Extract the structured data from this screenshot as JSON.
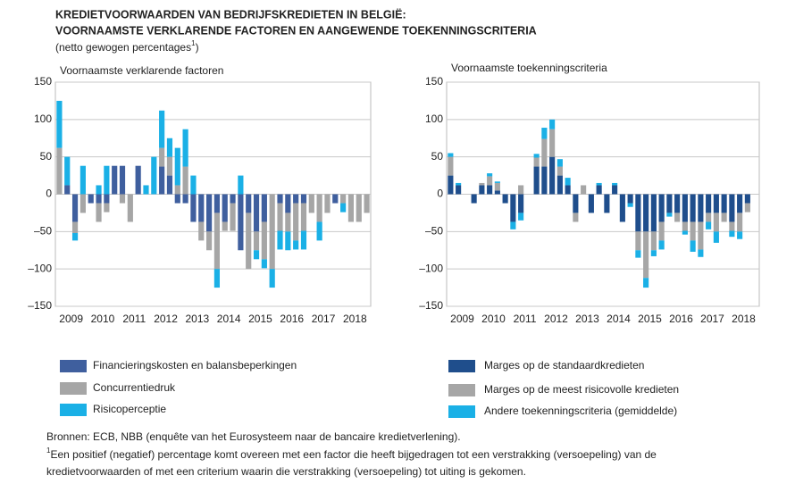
{
  "header": {
    "title_line1": "KREDIETVOORWAARDEN VAN BEDRIJFSKREDIETEN IN BELGIË:",
    "title_line2": "VOORNAAMSTE VERKLARENDE FACTOREN EN AANGEWENDE TOEKENNINGSCRITERIA",
    "subtitle": "(netto gewogen percentages",
    "subtitle_note": "1",
    "subtitle_end": ")"
  },
  "chart_data": [
    {
      "type": "stacked_bar",
      "title": "Voornaamste verklarende factoren",
      "categories": [
        "2009",
        null,
        null,
        null,
        "2010",
        null,
        null,
        null,
        "2011",
        null,
        null,
        null,
        "2012",
        null,
        null,
        null,
        "2013",
        null,
        null,
        null,
        "2014",
        null,
        null,
        null,
        "2015",
        null,
        null,
        null,
        "2016",
        null,
        null,
        null,
        "2017",
        null,
        null,
        null,
        "2018",
        null,
        null,
        null
      ],
      "ylim": [
        -150,
        150
      ],
      "yticks": [
        {
          "value": -150,
          "label": "–150"
        },
        {
          "value": -100,
          "label": "–100"
        },
        {
          "value": -50,
          "label": "–50"
        },
        0,
        50,
        100,
        150
      ],
      "grid": true,
      "series": [
        {
          "name": "Financieringskosten en balansbeperkingen",
          "color": "#3f5f9e",
          "values": [
            0,
            12,
            -37,
            0,
            -12,
            -12,
            -12,
            38,
            38,
            0,
            38,
            0,
            0,
            37,
            25,
            -12,
            -12,
            -37,
            -37,
            -50,
            -25,
            -37,
            -12,
            -75,
            -25,
            -50,
            -37,
            0,
            -12,
            -25,
            -12,
            -12,
            0,
            0,
            0,
            -12,
            0,
            0,
            0,
            0
          ]
        },
        {
          "name": "Concurrentiedruk",
          "color": "#a6a6a6",
          "values": [
            62,
            0,
            -15,
            -25,
            0,
            -25,
            -12,
            0,
            -12,
            -37,
            0,
            0,
            0,
            25,
            25,
            12,
            37,
            0,
            -25,
            -25,
            -75,
            -12,
            -37,
            0,
            -75,
            -25,
            -50,
            -100,
            -37,
            -25,
            -50,
            -37,
            -25,
            -37,
            -25,
            0,
            -12,
            -37,
            -37,
            -25
          ]
        },
        {
          "name": "Risicoperceptie",
          "color": "#1ab0e6",
          "values": [
            63,
            38,
            -10,
            38,
            0,
            12,
            38,
            0,
            0,
            0,
            0,
            12,
            50,
            50,
            25,
            50,
            50,
            25,
            0,
            0,
            -25,
            0,
            0,
            25,
            0,
            -12,
            -12,
            -25,
            -25,
            -25,
            -12,
            -25,
            0,
            -25,
            0,
            0,
            -12,
            0,
            0,
            0
          ]
        }
      ]
    },
    {
      "type": "stacked_bar",
      "title": "Voornaamste toekenningscriteria",
      "categories": [
        "2009",
        null,
        null,
        null,
        "2010",
        null,
        null,
        null,
        "2011",
        null,
        null,
        null,
        "2012",
        null,
        null,
        null,
        "2013",
        null,
        null,
        null,
        "2014",
        null,
        null,
        null,
        "2015",
        null,
        null,
        null,
        "2016",
        null,
        null,
        null,
        "2017",
        null,
        null,
        null,
        "2018",
        null,
        null,
        null
      ],
      "ylim": [
        -150,
        150
      ],
      "yticks": [
        {
          "value": -150,
          "label": "–150"
        },
        {
          "value": -100,
          "label": "–100"
        },
        {
          "value": -50,
          "label": "–50"
        },
        0,
        50,
        100,
        150
      ],
      "grid": true,
      "series": [
        {
          "name": "Marges op de standaardkredieten",
          "color": "#1f4e8c",
          "values": [
            25,
            12,
            0,
            -12,
            12,
            12,
            5,
            -12,
            -37,
            -25,
            0,
            37,
            37,
            50,
            25,
            12,
            -25,
            0,
            -25,
            12,
            -25,
            12,
            -37,
            -12,
            -50,
            -50,
            -50,
            -37,
            -25,
            -25,
            -37,
            -37,
            -37,
            -25,
            -25,
            -25,
            -37,
            -25,
            -12,
            0
          ]
        },
        {
          "name": "Marges op de meest risicovolle kredieten",
          "color": "#a6a6a6",
          "values": [
            25,
            0,
            0,
            0,
            3,
            12,
            10,
            0,
            0,
            12,
            0,
            12,
            37,
            37,
            12,
            0,
            -12,
            12,
            0,
            0,
            0,
            0,
            0,
            0,
            -25,
            -62,
            -25,
            -25,
            0,
            -12,
            -12,
            -25,
            -37,
            -12,
            -25,
            -12,
            -12,
            -25,
            -12,
            0
          ]
        },
        {
          "name": "Andere toekenningscriteria (gemiddelde)",
          "color": "#1ab0e6",
          "values": [
            5,
            3,
            0,
            0,
            0,
            4,
            2,
            0,
            -10,
            -10,
            0,
            5,
            15,
            13,
            10,
            10,
            0,
            0,
            0,
            3,
            0,
            3,
            0,
            -5,
            -10,
            -13,
            -8,
            -12,
            -5,
            0,
            -5,
            -15,
            -10,
            -10,
            -15,
            0,
            -8,
            -10,
            0,
            0
          ]
        }
      ]
    }
  ],
  "footer": {
    "source": "Bronnen: ECB, NBB (enquête van het Eurosysteem naar de bancaire kredietverlening).",
    "note_mark": "1",
    "note_line1": "Een positief (negatief) percentage komt overeen met een factor die heeft bijgedragen tot een verstrakking (versoepeling) van de",
    "note_line2": "kredietvoorwaarden of met een criterium waarin die verstrakking (versoepeling) tot uiting is gekomen."
  }
}
